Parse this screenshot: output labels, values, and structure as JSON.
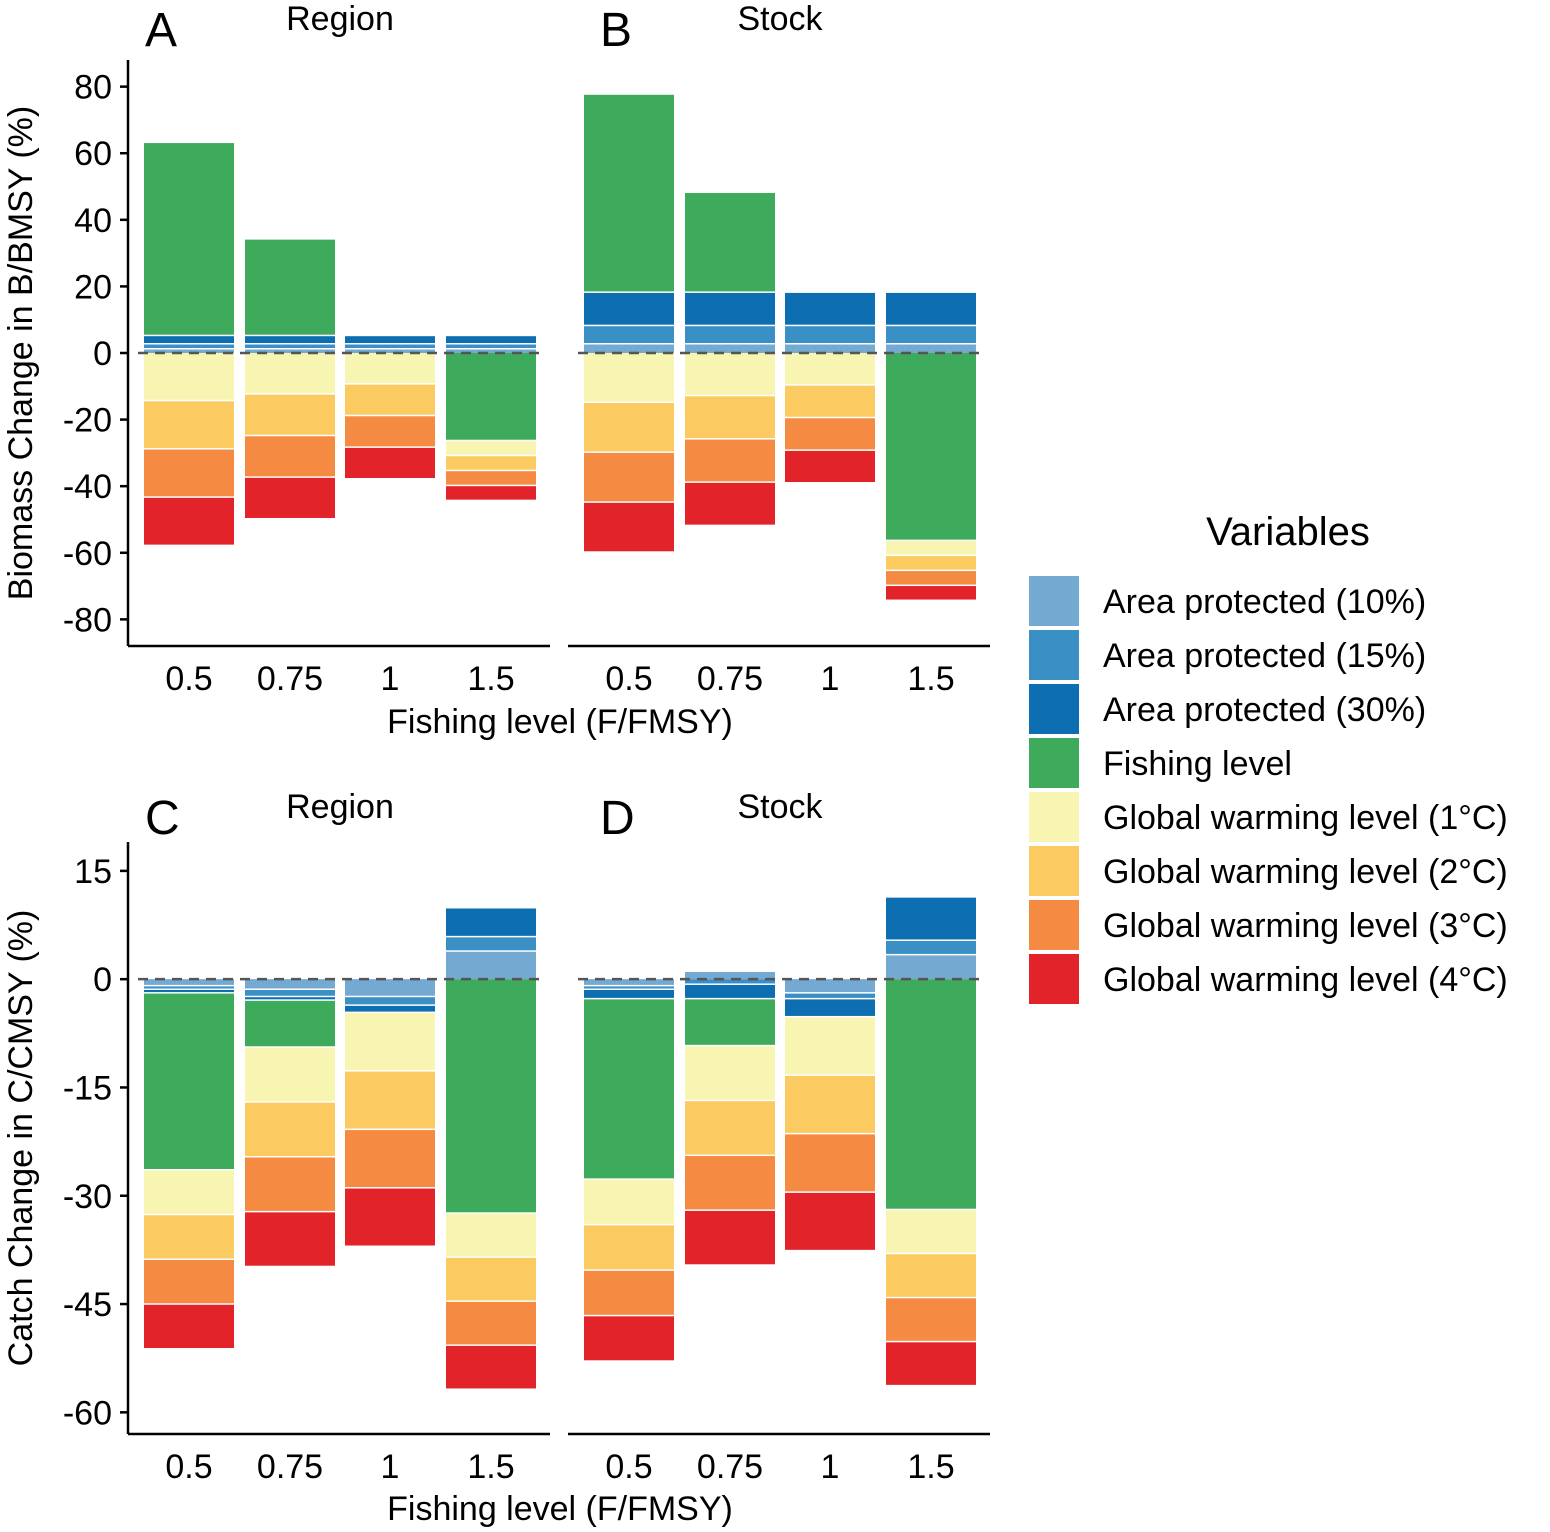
{
  "xlabel": "Fishing level (F/FMSY)",
  "colors": {
    "Area protected (10%)": "#74a9d2",
    "Area protected (15%)": "#3a8fc4",
    "Area protected (30%)": "#0d6eb2",
    "Fishing level": "#3dab5b",
    "Global warming level (1°C)": "#f8f5b3",
    "Global warming level (2°C)": "#fbcb62",
    "Global warming level (3°C)": "#f58b43",
    "Global warming level (4°C)": "#e2232a"
  },
  "legend": {
    "title": "Variables",
    "items": [
      "Area protected (10%)",
      "Area protected (15%)",
      "Area protected (30%)",
      "Fishing level",
      "Global warming level (1°C)",
      "Global warming level (2°C)",
      "Global warming level (3°C)",
      "Global warming level (4°C)"
    ]
  },
  "rows": [
    {
      "ylabel": "Biomass Change in B/BMSY (%)",
      "ylim": [
        -88,
        88
      ],
      "yticks": [
        80,
        60,
        40,
        20,
        0,
        -20,
        -40,
        -60,
        -80
      ]
    },
    {
      "ylabel": "Catch Change in C/CMSY (%)",
      "ylim": [
        -63,
        19
      ],
      "yticks": [
        15,
        0,
        -15,
        -30,
        -45,
        -60
      ]
    }
  ],
  "chart_data": [
    {
      "type": "bar",
      "stacked": true,
      "panel": "A",
      "title": "Region",
      "row": 0,
      "col": 0,
      "categories": [
        "0.5",
        "0.75",
        "1",
        "1.5"
      ],
      "series": [
        {
          "name": "Area protected (10%)",
          "values": [
            1.5,
            1.5,
            1.5,
            1.5
          ]
        },
        {
          "name": "Area protected (15%)",
          "values": [
            1.5,
            1.5,
            1.5,
            1.5
          ]
        },
        {
          "name": "Area protected (30%)",
          "values": [
            2.5,
            2.5,
            2.5,
            2.5
          ]
        },
        {
          "name": "Fishing level",
          "values": [
            58,
            29,
            0,
            -26.5
          ]
        },
        {
          "name": "Global warming level (1°C)",
          "values": [
            -14.5,
            -12.5,
            -9.5,
            -4.5
          ]
        },
        {
          "name": "Global warming level (2°C)",
          "values": [
            -14.5,
            -12.5,
            -9.5,
            -4.5
          ]
        },
        {
          "name": "Global warming level (3°C)",
          "values": [
            -14.5,
            -12.5,
            -9.5,
            -4.5
          ]
        },
        {
          "name": "Global warming level (4°C)",
          "values": [
            -14.5,
            -12.5,
            -9.5,
            -4.5
          ]
        }
      ]
    },
    {
      "type": "bar",
      "stacked": true,
      "panel": "B",
      "title": "Stock",
      "row": 0,
      "col": 1,
      "categories": [
        "0.5",
        "0.75",
        "1",
        "1.5"
      ],
      "series": [
        {
          "name": "Area protected (10%)",
          "values": [
            3,
            3,
            3,
            3
          ]
        },
        {
          "name": "Area protected (15%)",
          "values": [
            5.5,
            5.5,
            5.5,
            5.5
          ]
        },
        {
          "name": "Area protected (30%)",
          "values": [
            10,
            10,
            10,
            10
          ]
        },
        {
          "name": "Fishing level",
          "values": [
            59.5,
            30,
            0,
            -56.5
          ]
        },
        {
          "name": "Global warming level (1°C)",
          "values": [
            -15,
            -13,
            -9.8,
            -4.5
          ]
        },
        {
          "name": "Global warming level (2°C)",
          "values": [
            -15,
            -13,
            -9.8,
            -4.5
          ]
        },
        {
          "name": "Global warming level (3°C)",
          "values": [
            -15,
            -13,
            -9.8,
            -4.5
          ]
        },
        {
          "name": "Global warming level (4°C)",
          "values": [
            -15,
            -13,
            -9.8,
            -4.5
          ]
        }
      ]
    },
    {
      "type": "bar",
      "stacked": true,
      "panel": "C",
      "title": "Region",
      "row": 1,
      "col": 0,
      "categories": [
        "0.5",
        "0.75",
        "1",
        "1.5"
      ],
      "series": [
        {
          "name": "Area protected (10%)",
          "values": [
            -1,
            -1.5,
            -2.5,
            4
          ]
        },
        {
          "name": "Area protected (15%)",
          "values": [
            -0.5,
            -1,
            -1.2,
            2
          ]
        },
        {
          "name": "Area protected (30%)",
          "values": [
            -0.5,
            -0.5,
            -1,
            4
          ]
        },
        {
          "name": "Fishing level",
          "values": [
            -24.5,
            -6.5,
            0,
            -32.5
          ]
        },
        {
          "name": "Global warming level (1°C)",
          "values": [
            -6.2,
            -7.6,
            -8.1,
            -6.1
          ]
        },
        {
          "name": "Global warming level (2°C)",
          "values": [
            -6.2,
            -7.6,
            -8.1,
            -6.1
          ]
        },
        {
          "name": "Global warming level (3°C)",
          "values": [
            -6.2,
            -7.6,
            -8.1,
            -6.1
          ]
        },
        {
          "name": "Global warming level (4°C)",
          "values": [
            -6.2,
            -7.6,
            -8.1,
            -6.1
          ]
        }
      ]
    },
    {
      "type": "bar",
      "stacked": true,
      "panel": "D",
      "title": "Stock",
      "row": 1,
      "col": 1,
      "categories": [
        "0.5",
        "0.75",
        "1",
        "1.5"
      ],
      "series": [
        {
          "name": "Area protected (10%)",
          "values": [
            -1,
            1.2,
            -2,
            3.5
          ]
        },
        {
          "name": "Area protected (15%)",
          "values": [
            -0.5,
            -0.8,
            -0.8,
            2
          ]
        },
        {
          "name": "Area protected (30%)",
          "values": [
            -1.3,
            -2,
            -2.5,
            6
          ]
        },
        {
          "name": "Fishing level",
          "values": [
            -25,
            -6.5,
            0,
            -32
          ]
        },
        {
          "name": "Global warming level (1°C)",
          "values": [
            -6.3,
            -7.6,
            -8.1,
            -6.1
          ]
        },
        {
          "name": "Global warming level (2°C)",
          "values": [
            -6.3,
            -7.6,
            -8.1,
            -6.1
          ]
        },
        {
          "name": "Global warming level (3°C)",
          "values": [
            -6.3,
            -7.6,
            -8.1,
            -6.1
          ]
        },
        {
          "name": "Global warming level (4°C)",
          "values": [
            -6.3,
            -7.6,
            -8.1,
            -6.1
          ]
        }
      ]
    }
  ]
}
